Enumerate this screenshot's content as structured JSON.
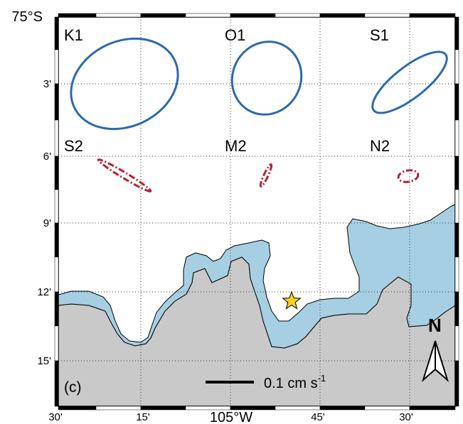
{
  "map": {
    "panel_label": "(c)",
    "north_label": "N",
    "scale_bar": {
      "label": "0.1 cm s",
      "exponent": "-1"
    },
    "lat_labels": [
      "75°S",
      "3'",
      "6'",
      "9'",
      "12'",
      "15'"
    ],
    "lon_labels": [
      "30'",
      "15'",
      "105°W",
      "45'",
      "30'"
    ],
    "constituents": [
      {
        "name": "K1",
        "group": "diurnal",
        "color": "#2b6aad",
        "style": "solid"
      },
      {
        "name": "O1",
        "group": "diurnal",
        "color": "#2b6aad",
        "style": "solid"
      },
      {
        "name": "S1",
        "group": "diurnal",
        "color": "#2b6aad",
        "style": "solid"
      },
      {
        "name": "S2",
        "group": "semidiurnal",
        "color": "#b02232",
        "style": "dashed"
      },
      {
        "name": "M2",
        "group": "semidiurnal",
        "color": "#b02232",
        "style": "dashed"
      },
      {
        "name": "N2",
        "group": "semidiurnal",
        "color": "#b02232",
        "style": "dashed"
      }
    ],
    "colors": {
      "land": "#c9c9c9",
      "ice_shelf_water": "#a6cfe3",
      "frame": "#000000",
      "star": "#f7d21e"
    },
    "markers": [
      "star"
    ]
  }
}
